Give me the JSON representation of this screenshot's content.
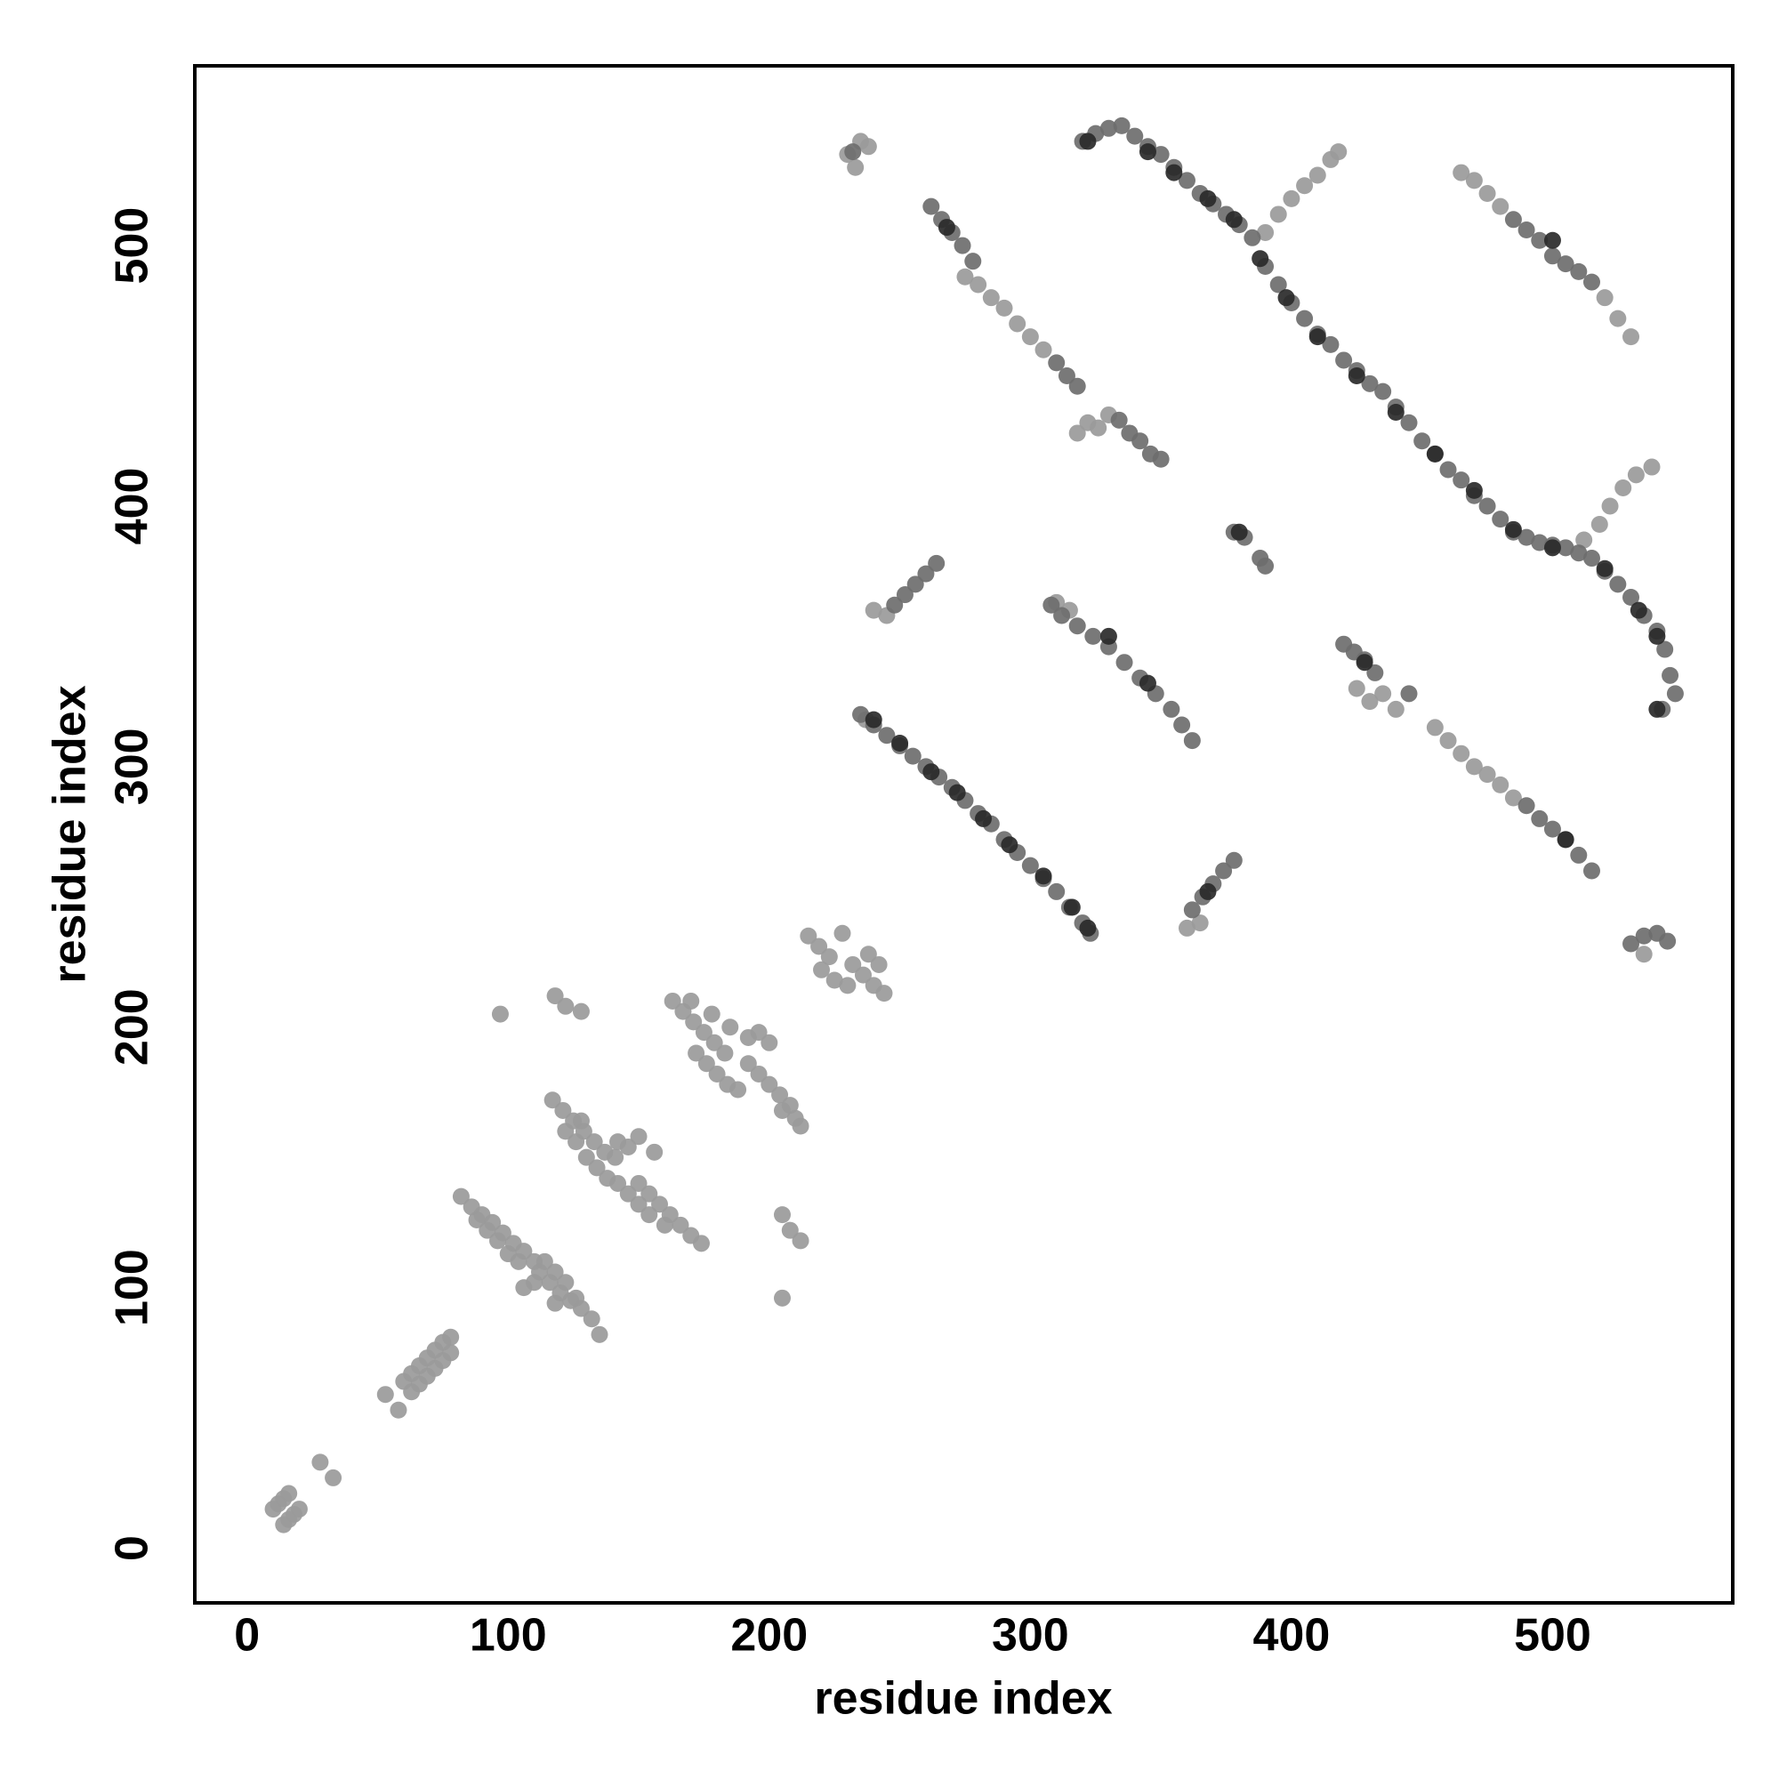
{
  "chart_data": {
    "type": "scatter",
    "xlabel": "residue index",
    "ylabel": "residue index",
    "xlim": [
      -20,
      569
    ],
    "ylim": [
      -21,
      569
    ],
    "xticks": [
      0,
      100,
      200,
      300,
      400,
      500
    ],
    "yticks": [
      0,
      100,
      200,
      300,
      400,
      500
    ],
    "grid": false,
    "series": [
      {
        "color": "#9a9a9a",
        "x": [
          10,
          12,
          14,
          16,
          14,
          16,
          18,
          20,
          28,
          33,
          53,
          58,
          60,
          63,
          66,
          69,
          72,
          75,
          78,
          63,
          66,
          69,
          72,
          75,
          78,
          82,
          86,
          90,
          94,
          98,
          102,
          106,
          110,
          112,
          116,
          120,
          124,
          128,
          132,
          135,
          88,
          92,
          96,
          100,
          104,
          114,
          118,
          122,
          126,
          110,
          106,
          118,
          117,
          121,
          125,
          129,
          133,
          137,
          141,
          150,
          154,
          158,
          162,
          166,
          170,
          174,
          126,
          130,
          134,
          138,
          142,
          146,
          150,
          154,
          160,
          142,
          146,
          150,
          156,
          122,
          128,
          163,
          167,
          171,
          175,
          179,
          183,
          192,
          196,
          200,
          204,
          208,
          212,
          172,
          176,
          180,
          184,
          188,
          192,
          196,
          200,
          205,
          210,
          185,
          178,
          170,
          215,
          219,
          223,
          232,
          236,
          240,
          244,
          220,
          225,
          230,
          238,
          242,
          228,
          97,
          118,
          122,
          128,
          205,
          208,
          212,
          205,
          230,
          235,
          238,
          233,
          390,
          395,
          400,
          405,
          410,
          415,
          418,
          512,
          518,
          522,
          527,
          532,
          538,
          275,
          280,
          285,
          290,
          295,
          300,
          305,
          318,
          322,
          326,
          330,
          425,
          430,
          435,
          440,
          455,
          460,
          465,
          470,
          475,
          480,
          485,
          465,
          470,
          475,
          480,
          520,
          525,
          530,
          240,
          245,
          535,
          360,
          365,
          310,
          315,
          237
        ],
        "y": [
          15,
          17,
          19,
          21,
          9,
          11,
          13,
          15,
          33,
          27,
          59,
          53,
          64,
          67,
          70,
          73,
          76,
          79,
          81,
          60,
          63,
          66,
          69,
          72,
          75,
          135,
          131,
          128,
          125,
          121,
          117,
          114,
          110,
          106,
          102,
          98,
          95,
          92,
          88,
          82,
          126,
          122,
          118,
          113,
          110,
          110,
          106,
          102,
          96,
          102,
          100,
          94,
          172,
          168,
          164,
          160,
          156,
          152,
          150,
          140,
          136,
          132,
          128,
          124,
          120,
          117,
          156,
          150,
          146,
          142,
          140,
          136,
          132,
          128,
          124,
          156,
          154,
          158,
          152,
          160,
          164,
          210,
          206,
          202,
          198,
          194,
          190,
          186,
          182,
          178,
          174,
          170,
          162,
          190,
          186,
          182,
          178,
          176,
          196,
          198,
          194,
          168,
          165,
          200,
          205,
          210,
          235,
          231,
          227,
          224,
          220,
          216,
          213,
          222,
          218,
          216,
          228,
          224,
          236,
          205,
          212,
          208,
          206,
          128,
          122,
          118,
          96,
          535,
          540,
          538,
          530,
          505,
          512,
          518,
          523,
          527,
          533,
          536,
          387,
          393,
          400,
          407,
          412,
          415,
          488,
          485,
          480,
          476,
          470,
          465,
          460,
          428,
          432,
          430,
          435,
          330,
          325,
          328,
          322,
          315,
          310,
          305,
          300,
          297,
          293,
          288,
          528,
          525,
          520,
          515,
          480,
          472,
          465,
          360,
          358,
          228,
          238,
          240,
          363,
          360,
          318
        ]
      },
      {
        "color": "#6e6e6e",
        "x": [
          320,
          325,
          330,
          335,
          340,
          345,
          350,
          355,
          360,
          365,
          370,
          375,
          380,
          385,
          390,
          395,
          400,
          405,
          410,
          415,
          420,
          425,
          430,
          435,
          440,
          445,
          450,
          455,
          460,
          465,
          470,
          475,
          480,
          485,
          490,
          495,
          500,
          505,
          510,
          515,
          520,
          525,
          530,
          535,
          540,
          543,
          545,
          547,
          542,
          262,
          266,
          270,
          274,
          278,
          310,
          314,
          318,
          334,
          338,
          342,
          346,
          350,
          235,
          240,
          245,
          250,
          255,
          260,
          265,
          270,
          275,
          280,
          285,
          290,
          295,
          300,
          305,
          310,
          315,
          320,
          323,
          248,
          252,
          256,
          260,
          264,
          308,
          312,
          318,
          324,
          330,
          336,
          342,
          348,
          354,
          358,
          362,
          362,
          366,
          370,
          374,
          378,
          420,
          424,
          428,
          432,
          445,
          490,
          495,
          500,
          505,
          510,
          515,
          485,
          490,
          495,
          500,
          505,
          510,
          515,
          378,
          382,
          388,
          390,
          530,
          535,
          540,
          544,
          232
        ],
        "y": [
          540,
          543,
          545,
          546,
          542,
          538,
          535,
          530,
          525,
          520,
          516,
          512,
          508,
          503,
          492,
          485,
          478,
          472,
          466,
          462,
          456,
          452,
          447,
          444,
          438,
          432,
          425,
          420,
          414,
          410,
          404,
          400,
          395,
          390,
          388,
          386,
          385,
          384,
          382,
          380,
          375,
          370,
          365,
          358,
          352,
          345,
          335,
          328,
          322,
          515,
          510,
          505,
          500,
          494,
          455,
          450,
          446,
          433,
          428,
          425,
          420,
          418,
          320,
          316,
          312,
          308,
          304,
          300,
          296,
          292,
          287,
          282,
          278,
          272,
          267,
          262,
          257,
          252,
          246,
          240,
          236,
          362,
          366,
          370,
          374,
          378,
          362,
          358,
          354,
          350,
          346,
          340,
          334,
          328,
          322,
          316,
          310,
          245,
          250,
          255,
          260,
          264,
          347,
          344,
          341,
          336,
          328,
          285,
          280,
          276,
          272,
          266,
          260,
          510,
          506,
          502,
          496,
          493,
          490,
          486,
          390,
          388,
          380,
          377,
          232,
          235,
          236,
          233,
          536
        ]
      },
      {
        "color": "#2a2a2a",
        "x": [
          322,
          345,
          355,
          368,
          378,
          388,
          398,
          410,
          425,
          440,
          455,
          470,
          485,
          500,
          520,
          533,
          540,
          540,
          240,
          250,
          262,
          272,
          282,
          292,
          305,
          316,
          322,
          268,
          330,
          345,
          368,
          500,
          505,
          380,
          428
        ],
        "y": [
          540,
          536,
          528,
          518,
          510,
          495,
          480,
          465,
          450,
          436,
          420,
          406,
          391,
          384,
          376,
          360,
          350,
          322,
          318,
          309,
          298,
          290,
          280,
          270,
          258,
          246,
          238,
          507,
          350,
          332,
          252,
          502,
          272,
          390,
          340
        ]
      }
    ]
  }
}
